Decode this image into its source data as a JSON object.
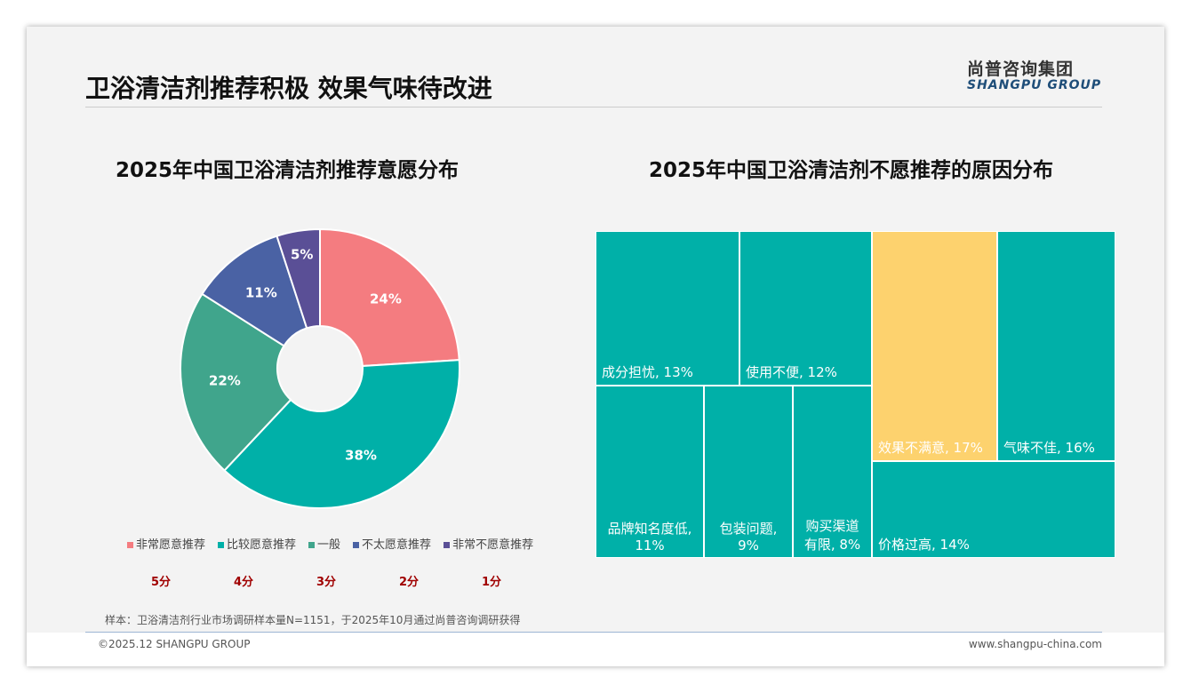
{
  "header": {
    "title": "卫浴清洁剂推荐积极 效果气味待改进",
    "logo_cn": "尚普咨询集团",
    "logo_en": "SHANGPU GROUP"
  },
  "chart_data": [
    {
      "type": "pie",
      "title": "2025年中国卫浴清洁剂推荐意愿分布",
      "categories": [
        "非常愿意推荐",
        "比较愿意推荐",
        "一般",
        "不太愿意推荐",
        "非常不愿意推荐"
      ],
      "values": [
        24,
        38,
        22,
        11,
        5
      ],
      "labels": [
        "24%",
        "38%",
        "22%",
        "11%",
        "5%"
      ],
      "colors": [
        "#F47C80",
        "#00B0A8",
        "#40A58C",
        "#4A62A4",
        "#5A4F96"
      ],
      "scores": [
        "5分",
        "4分",
        "3分",
        "2分",
        "1分"
      ],
      "legend": "bottom"
    },
    {
      "type": "treemap",
      "title": "2025年中国卫浴清洁剂不愿推荐的原因分布",
      "items": [
        {
          "label": "成分担忧, 13%",
          "value": 13
        },
        {
          "label": "使用不便, 12%",
          "value": 12
        },
        {
          "label": "品牌知名度低, 11%",
          "value": 11
        },
        {
          "label": "包装问题, 9%",
          "value": 9
        },
        {
          "label": "购买渠道有限, 8%",
          "value": 8
        },
        {
          "label": "效果不满意, 17%",
          "value": 17
        },
        {
          "label": "气味不佳, 16%",
          "value": 16
        },
        {
          "label": "价格过高, 14%",
          "value": 14
        }
      ],
      "colors": {
        "default": "#00B0A8",
        "highlight": "#FDD26E"
      }
    }
  ],
  "footer": {
    "note": "样本：卫浴清洁剂行业市场调研样本量N=1151，于2025年10月通过尚普咨询调研获得",
    "copyright": "©2025.12 SHANGPU GROUP",
    "url": "www.shangpu-china.com"
  }
}
